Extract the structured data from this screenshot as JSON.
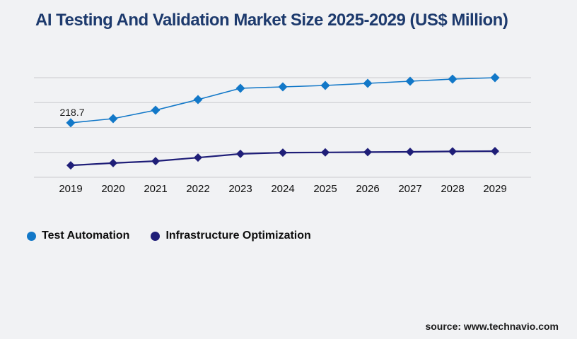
{
  "page": {
    "title": "AI Testing And Validation Market Size 2025-2029 (US$ Million)",
    "source": "source: www.technavio.com"
  },
  "colors": {
    "background": "#f1f2f4",
    "title": "#1d3a6d",
    "gridline": "#cacbce",
    "axis_text": "#0e0e0e",
    "annotation_text": "#1a1a1a",
    "test_automation": "#1278c8",
    "infrastructure_optimization": "#1f1e78"
  },
  "legend": {
    "items": [
      {
        "label": "Test Automation",
        "color": "#1278c8"
      },
      {
        "label": "Infrastructure Optimization",
        "color": "#1f1e78"
      }
    ]
  },
  "chart_data": {
    "type": "line",
    "title": "AI Testing And Validation Market Size 2025-2029 (US$ Million)",
    "x": [
      2019,
      2020,
      2021,
      2022,
      2023,
      2024,
      2025,
      2026,
      2027,
      2028,
      2029
    ],
    "series": [
      {
        "name": "Test Automation",
        "color": "#1278c8",
        "marker": "diamond",
        "values": [
          218.7,
          235.5,
          269.5,
          312.0,
          357.4,
          363.1,
          368.8,
          377.3,
          385.8,
          394.3,
          400.0
        ]
      },
      {
        "name": "Infrastructure Optimization",
        "color": "#1f1e78",
        "marker": "diamond",
        "values": [
          48.0,
          57.0,
          65.0,
          79.0,
          94.0,
          99.0,
          100.0,
          101.0,
          102.0,
          104.0,
          105.0
        ]
      }
    ],
    "xlabel": "",
    "ylabel": "",
    "ylim": [
      0,
      400
    ],
    "gridline_values": [
      0,
      100,
      200,
      300,
      400
    ],
    "grid": "horizontal",
    "y_axis_labels_shown": false,
    "legend_position": "bottom-left",
    "annotations": [
      {
        "series": "Test Automation",
        "x": 2019,
        "text": "218.7"
      }
    ]
  }
}
